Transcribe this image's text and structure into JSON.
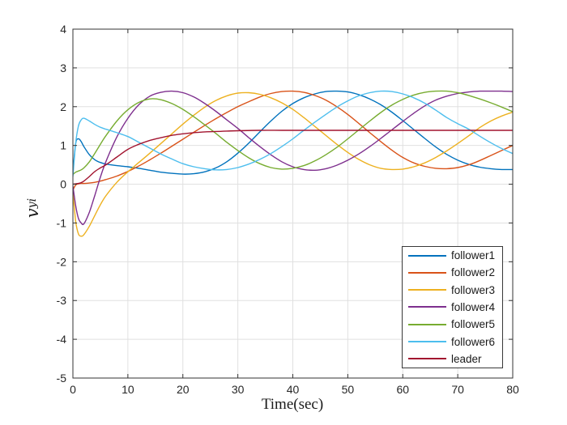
{
  "figure": {
    "xlabel": "Time(sec)",
    "ylabel_main": "v",
    "ylabel_sub": "yi",
    "background": "#ffffff"
  },
  "chart_data": {
    "type": "line",
    "title": "",
    "xlabel": "Time(sec)",
    "ylabel": "v_yi",
    "xlim": [
      0,
      80
    ],
    "ylim": [
      -5,
      4
    ],
    "x_ticks": [
      0,
      10,
      20,
      30,
      40,
      50,
      60,
      70,
      80
    ],
    "y_ticks": [
      -5,
      -4,
      -3,
      -2,
      -1,
      0,
      1,
      2,
      3,
      4
    ],
    "grid": true,
    "legend_position": "lower-right-inside",
    "axis_color": "#333333",
    "grid_color": "#e0e0e0",
    "tick_label_color": "#262626",
    "line_width": 1.4,
    "series": [
      {
        "name": "follower1",
        "color": "#0072BD",
        "points": [
          [
            0,
            0.3
          ],
          [
            0.5,
            1.05
          ],
          [
            1,
            1.17
          ],
          [
            1.5,
            1.1
          ],
          [
            2,
            0.97
          ],
          [
            3,
            0.76
          ],
          [
            4,
            0.63
          ],
          [
            5,
            0.56
          ],
          [
            6,
            0.52
          ],
          [
            8,
            0.48
          ],
          [
            10,
            0.45
          ],
          [
            12,
            0.41
          ],
          [
            14,
            0.36
          ],
          [
            16,
            0.31
          ],
          [
            18,
            0.28
          ],
          [
            20,
            0.26
          ],
          [
            22,
            0.27
          ],
          [
            24,
            0.32
          ],
          [
            26,
            0.42
          ],
          [
            28,
            0.58
          ],
          [
            30,
            0.8
          ],
          [
            32,
            1.06
          ],
          [
            34,
            1.35
          ],
          [
            36,
            1.63
          ],
          [
            38,
            1.88
          ],
          [
            40,
            2.08
          ],
          [
            42,
            2.23
          ],
          [
            44,
            2.33
          ],
          [
            46,
            2.39
          ],
          [
            48,
            2.4
          ],
          [
            50,
            2.38
          ],
          [
            52,
            2.31
          ],
          [
            54,
            2.2
          ],
          [
            56,
            2.05
          ],
          [
            58,
            1.86
          ],
          [
            60,
            1.64
          ],
          [
            62,
            1.41
          ],
          [
            64,
            1.18
          ],
          [
            66,
            0.96
          ],
          [
            68,
            0.77
          ],
          [
            70,
            0.62
          ],
          [
            72,
            0.51
          ],
          [
            74,
            0.44
          ],
          [
            76,
            0.4
          ],
          [
            78,
            0.38
          ],
          [
            80,
            0.38
          ]
        ]
      },
      {
        "name": "follower2",
        "color": "#D95319",
        "points": [
          [
            0,
            -0.15
          ],
          [
            0.5,
            -0.02
          ],
          [
            1,
            0.01
          ],
          [
            1.5,
            0.02
          ],
          [
            2,
            0.02
          ],
          [
            3,
            0.03
          ],
          [
            4,
            0.05
          ],
          [
            5,
            0.08
          ],
          [
            6,
            0.12
          ],
          [
            8,
            0.21
          ],
          [
            10,
            0.33
          ],
          [
            12,
            0.47
          ],
          [
            14,
            0.63
          ],
          [
            16,
            0.8
          ],
          [
            18,
            0.98
          ],
          [
            20,
            1.16
          ],
          [
            22,
            1.34
          ],
          [
            24,
            1.52
          ],
          [
            26,
            1.69
          ],
          [
            28,
            1.85
          ],
          [
            30,
            2.0
          ],
          [
            32,
            2.13
          ],
          [
            34,
            2.25
          ],
          [
            36,
            2.34
          ],
          [
            38,
            2.39
          ],
          [
            40,
            2.4
          ],
          [
            42,
            2.37
          ],
          [
            44,
            2.29
          ],
          [
            46,
            2.17
          ],
          [
            48,
            2.0
          ],
          [
            50,
            1.8
          ],
          [
            52,
            1.57
          ],
          [
            54,
            1.33
          ],
          [
            56,
            1.1
          ],
          [
            58,
            0.88
          ],
          [
            60,
            0.69
          ],
          [
            62,
            0.55
          ],
          [
            64,
            0.46
          ],
          [
            66,
            0.41
          ],
          [
            68,
            0.4
          ],
          [
            70,
            0.43
          ],
          [
            72,
            0.5
          ],
          [
            74,
            0.61
          ],
          [
            76,
            0.74
          ],
          [
            78,
            0.87
          ],
          [
            80,
            1.0
          ]
        ]
      },
      {
        "name": "follower3",
        "color": "#EDB120",
        "points": [
          [
            0,
            -0.2
          ],
          [
            0.5,
            -0.95
          ],
          [
            1,
            -1.28
          ],
          [
            1.5,
            -1.34
          ],
          [
            2,
            -1.3
          ],
          [
            3,
            -1.08
          ],
          [
            4,
            -0.8
          ],
          [
            5,
            -0.53
          ],
          [
            6,
            -0.3
          ],
          [
            8,
            0.05
          ],
          [
            10,
            0.32
          ],
          [
            12,
            0.56
          ],
          [
            14,
            0.8
          ],
          [
            16,
            1.05
          ],
          [
            18,
            1.3
          ],
          [
            20,
            1.55
          ],
          [
            22,
            1.78
          ],
          [
            24,
            1.99
          ],
          [
            26,
            2.16
          ],
          [
            28,
            2.28
          ],
          [
            30,
            2.35
          ],
          [
            32,
            2.36
          ],
          [
            34,
            2.32
          ],
          [
            36,
            2.23
          ],
          [
            38,
            2.1
          ],
          [
            40,
            1.93
          ],
          [
            42,
            1.72
          ],
          [
            44,
            1.49
          ],
          [
            46,
            1.26
          ],
          [
            48,
            1.03
          ],
          [
            50,
            0.82
          ],
          [
            52,
            0.64
          ],
          [
            54,
            0.5
          ],
          [
            56,
            0.41
          ],
          [
            58,
            0.38
          ],
          [
            60,
            0.39
          ],
          [
            62,
            0.45
          ],
          [
            64,
            0.55
          ],
          [
            66,
            0.69
          ],
          [
            68,
            0.86
          ],
          [
            70,
            1.05
          ],
          [
            72,
            1.25
          ],
          [
            74,
            1.46
          ],
          [
            76,
            1.63
          ],
          [
            78,
            1.76
          ],
          [
            80,
            1.86
          ]
        ]
      },
      {
        "name": "follower4",
        "color": "#7E2F8E",
        "points": [
          [
            0,
            -0.05
          ],
          [
            0.5,
            -0.55
          ],
          [
            1,
            -0.88
          ],
          [
            1.5,
            -1.0
          ],
          [
            2,
            -1.02
          ],
          [
            3,
            -0.72
          ],
          [
            4,
            -0.28
          ],
          [
            5,
            0.18
          ],
          [
            6,
            0.58
          ],
          [
            8,
            1.22
          ],
          [
            10,
            1.7
          ],
          [
            12,
            2.05
          ],
          [
            14,
            2.27
          ],
          [
            16,
            2.37
          ],
          [
            18,
            2.4
          ],
          [
            20,
            2.36
          ],
          [
            22,
            2.25
          ],
          [
            24,
            2.08
          ],
          [
            26,
            1.88
          ],
          [
            28,
            1.66
          ],
          [
            30,
            1.44
          ],
          [
            32,
            1.2
          ],
          [
            34,
            0.97
          ],
          [
            36,
            0.76
          ],
          [
            38,
            0.58
          ],
          [
            40,
            0.45
          ],
          [
            42,
            0.38
          ],
          [
            44,
            0.36
          ],
          [
            46,
            0.4
          ],
          [
            48,
            0.49
          ],
          [
            50,
            0.62
          ],
          [
            52,
            0.78
          ],
          [
            54,
            0.97
          ],
          [
            56,
            1.18
          ],
          [
            58,
            1.4
          ],
          [
            60,
            1.62
          ],
          [
            62,
            1.83
          ],
          [
            64,
            2.02
          ],
          [
            66,
            2.17
          ],
          [
            68,
            2.27
          ],
          [
            70,
            2.34
          ],
          [
            72,
            2.38
          ],
          [
            74,
            2.4
          ],
          [
            76,
            2.4
          ],
          [
            78,
            2.4
          ],
          [
            80,
            2.39
          ]
        ]
      },
      {
        "name": "follower5",
        "color": "#77AC30",
        "points": [
          [
            0,
            0.25
          ],
          [
            0.5,
            0.31
          ],
          [
            1,
            0.34
          ],
          [
            1.5,
            0.37
          ],
          [
            2,
            0.42
          ],
          [
            3,
            0.58
          ],
          [
            4,
            0.8
          ],
          [
            5,
            1.03
          ],
          [
            6,
            1.25
          ],
          [
            8,
            1.63
          ],
          [
            10,
            1.92
          ],
          [
            12,
            2.11
          ],
          [
            14,
            2.2
          ],
          [
            16,
            2.18
          ],
          [
            18,
            2.08
          ],
          [
            20,
            1.93
          ],
          [
            22,
            1.74
          ],
          [
            24,
            1.53
          ],
          [
            26,
            1.31
          ],
          [
            28,
            1.08
          ],
          [
            30,
            0.87
          ],
          [
            32,
            0.68
          ],
          [
            34,
            0.53
          ],
          [
            36,
            0.43
          ],
          [
            38,
            0.39
          ],
          [
            40,
            0.41
          ],
          [
            42,
            0.48
          ],
          [
            44,
            0.6
          ],
          [
            46,
            0.76
          ],
          [
            48,
            0.95
          ],
          [
            50,
            1.17
          ],
          [
            52,
            1.4
          ],
          [
            54,
            1.63
          ],
          [
            56,
            1.85
          ],
          [
            58,
            2.04
          ],
          [
            60,
            2.19
          ],
          [
            62,
            2.3
          ],
          [
            64,
            2.37
          ],
          [
            66,
            2.4
          ],
          [
            68,
            2.4
          ],
          [
            70,
            2.36
          ],
          [
            72,
            2.29
          ],
          [
            74,
            2.2
          ],
          [
            76,
            2.1
          ],
          [
            78,
            1.99
          ],
          [
            80,
            1.87
          ]
        ]
      },
      {
        "name": "follower6",
        "color": "#4DBEEE",
        "points": [
          [
            0,
            0.2
          ],
          [
            0.5,
            1.05
          ],
          [
            1,
            1.5
          ],
          [
            1.5,
            1.66
          ],
          [
            2,
            1.7
          ],
          [
            3,
            1.63
          ],
          [
            4,
            1.54
          ],
          [
            5,
            1.47
          ],
          [
            6,
            1.42
          ],
          [
            8,
            1.33
          ],
          [
            10,
            1.23
          ],
          [
            12,
            1.08
          ],
          [
            14,
            0.93
          ],
          [
            16,
            0.78
          ],
          [
            18,
            0.65
          ],
          [
            20,
            0.53
          ],
          [
            22,
            0.45
          ],
          [
            24,
            0.4
          ],
          [
            26,
            0.37
          ],
          [
            28,
            0.38
          ],
          [
            30,
            0.43
          ],
          [
            32,
            0.52
          ],
          [
            34,
            0.64
          ],
          [
            36,
            0.79
          ],
          [
            38,
            0.97
          ],
          [
            40,
            1.17
          ],
          [
            42,
            1.39
          ],
          [
            44,
            1.6
          ],
          [
            46,
            1.8
          ],
          [
            48,
            1.99
          ],
          [
            50,
            2.15
          ],
          [
            52,
            2.28
          ],
          [
            54,
            2.36
          ],
          [
            56,
            2.4
          ],
          [
            58,
            2.39
          ],
          [
            60,
            2.33
          ],
          [
            62,
            2.23
          ],
          [
            64,
            2.09
          ],
          [
            66,
            1.91
          ],
          [
            68,
            1.72
          ],
          [
            70,
            1.56
          ],
          [
            72,
            1.42
          ],
          [
            74,
            1.24
          ],
          [
            76,
            1.07
          ],
          [
            78,
            0.92
          ],
          [
            80,
            0.79
          ]
        ]
      },
      {
        "name": "leader",
        "color": "#A2142F",
        "points": [
          [
            0,
            0.0
          ],
          [
            0.5,
            0.01
          ],
          [
            1,
            0.02
          ],
          [
            1.5,
            0.04
          ],
          [
            2,
            0.08
          ],
          [
            3,
            0.2
          ],
          [
            4,
            0.33
          ],
          [
            5,
            0.42
          ],
          [
            6,
            0.5
          ],
          [
            8,
            0.7
          ],
          [
            10,
            0.9
          ],
          [
            12,
            1.03
          ],
          [
            14,
            1.13
          ],
          [
            16,
            1.2
          ],
          [
            18,
            1.26
          ],
          [
            20,
            1.3
          ],
          [
            22,
            1.33
          ],
          [
            24,
            1.35
          ],
          [
            26,
            1.36
          ],
          [
            28,
            1.37
          ],
          [
            30,
            1.38
          ],
          [
            34,
            1.39
          ],
          [
            38,
            1.39
          ],
          [
            42,
            1.39
          ],
          [
            46,
            1.39
          ],
          [
            50,
            1.39
          ],
          [
            54,
            1.39
          ],
          [
            58,
            1.39
          ],
          [
            62,
            1.39
          ],
          [
            66,
            1.39
          ],
          [
            70,
            1.39
          ],
          [
            74,
            1.39
          ],
          [
            78,
            1.39
          ],
          [
            80,
            1.39
          ]
        ]
      }
    ]
  },
  "legend": {
    "items": [
      "follower1",
      "follower2",
      "follower3",
      "follower4",
      "follower5",
      "follower6",
      "leader"
    ]
  }
}
